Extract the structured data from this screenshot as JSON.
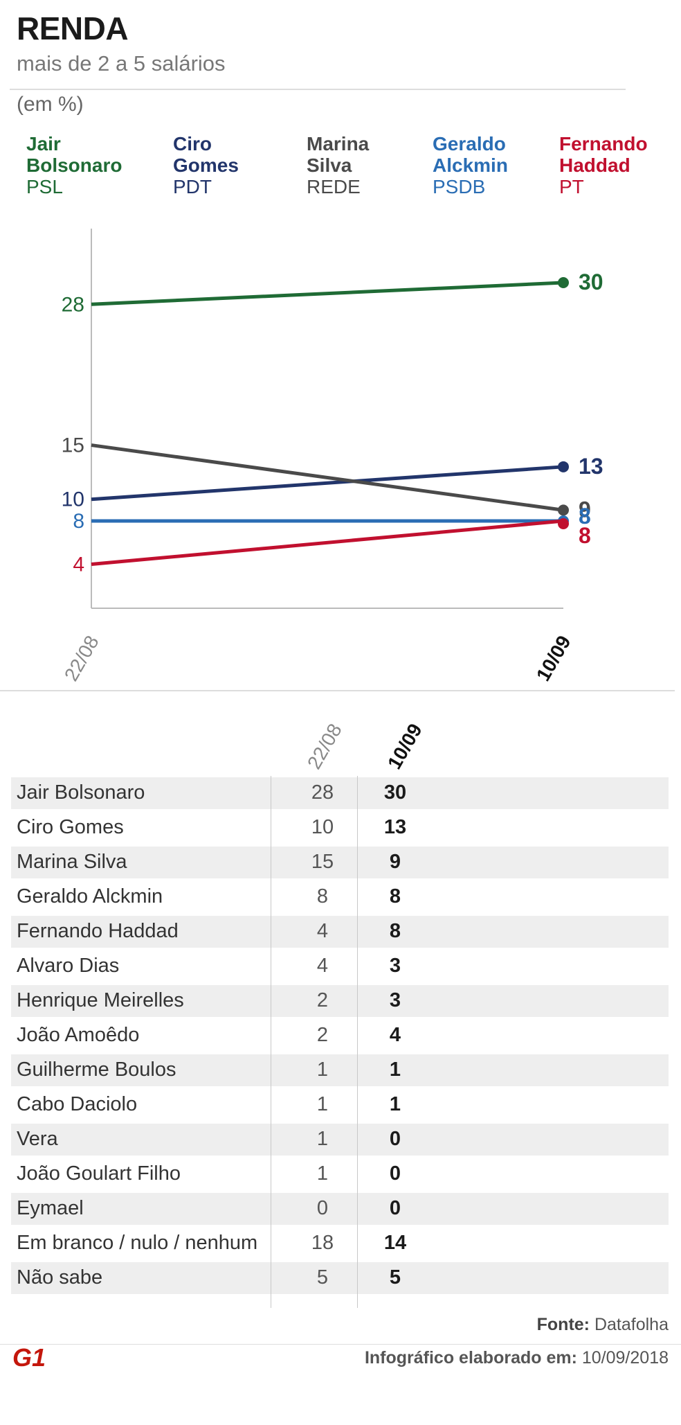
{
  "title": "RENDA",
  "subtitle": "mais de 2 a 5 salários",
  "unit": "(em %)",
  "candidates": [
    {
      "name": "Jair\nBolsonaro",
      "party": "PSL",
      "color": "#1f6b35"
    },
    {
      "name": "Ciro\nGomes",
      "party": "PDT",
      "color": "#22356b"
    },
    {
      "name": "Marina\nSilva",
      "party": "REDE",
      "color": "#4a4a4a"
    },
    {
      "name": "Geraldo\nAlckmin",
      "party": "PSDB",
      "color": "#2a6db4"
    },
    {
      "name": "Fernando\nHaddad",
      "party": "PT",
      "color": "#c1102f"
    }
  ],
  "chart_data": {
    "type": "line",
    "x": [
      "22/08",
      "10/09"
    ],
    "series": [
      {
        "name": "Jair Bolsonaro",
        "values": [
          28,
          30
        ],
        "color": "#1f6b35"
      },
      {
        "name": "Ciro Gomes",
        "values": [
          10,
          13
        ],
        "color": "#22356b"
      },
      {
        "name": "Marina Silva",
        "values": [
          15,
          9
        ],
        "color": "#4a4a4a"
      },
      {
        "name": "Geraldo Alckmin",
        "values": [
          8,
          8
        ],
        "color": "#2a6db4"
      },
      {
        "name": "Fernando Haddad",
        "values": [
          4,
          8
        ],
        "color": "#c1102f"
      }
    ],
    "ylim": [
      0,
      32
    ],
    "grid": false
  },
  "table": {
    "col_headers": [
      "22/08",
      "10/09"
    ],
    "rows": [
      {
        "name": "Jair Bolsonaro",
        "v1": "28",
        "v2": "30"
      },
      {
        "name": "Ciro Gomes",
        "v1": "10",
        "v2": "13"
      },
      {
        "name": "Marina Silva",
        "v1": "15",
        "v2": "9"
      },
      {
        "name": "Geraldo Alckmin",
        "v1": "8",
        "v2": "8"
      },
      {
        "name": "Fernando Haddad",
        "v1": "4",
        "v2": "8"
      },
      {
        "name": "Alvaro Dias",
        "v1": "4",
        "v2": "3"
      },
      {
        "name": "Henrique Meirelles",
        "v1": "2",
        "v2": "3"
      },
      {
        "name": "João Amoêdo",
        "v1": "2",
        "v2": "4"
      },
      {
        "name": "Guilherme Boulos",
        "v1": "1",
        "v2": "1"
      },
      {
        "name": "Cabo Daciolo",
        "v1": "1",
        "v2": "1"
      },
      {
        "name": "Vera",
        "v1": "1",
        "v2": "0"
      },
      {
        "name": "João Goulart Filho",
        "v1": "1",
        "v2": "0"
      },
      {
        "name": "Eymael",
        "v1": "0",
        "v2": "0"
      },
      {
        "name": "Em branco / nulo / nenhum",
        "v1": "18",
        "v2": "14"
      },
      {
        "name": "Não sabe",
        "v1": "5",
        "v2": "5"
      }
    ]
  },
  "footer": {
    "source_label": "Fonte:",
    "source": "Datafolha",
    "date_label": "Infográfico elaborado em:",
    "date": "10/09/2018"
  },
  "logo": {
    "text": "G1",
    "color": "#c4170c"
  }
}
